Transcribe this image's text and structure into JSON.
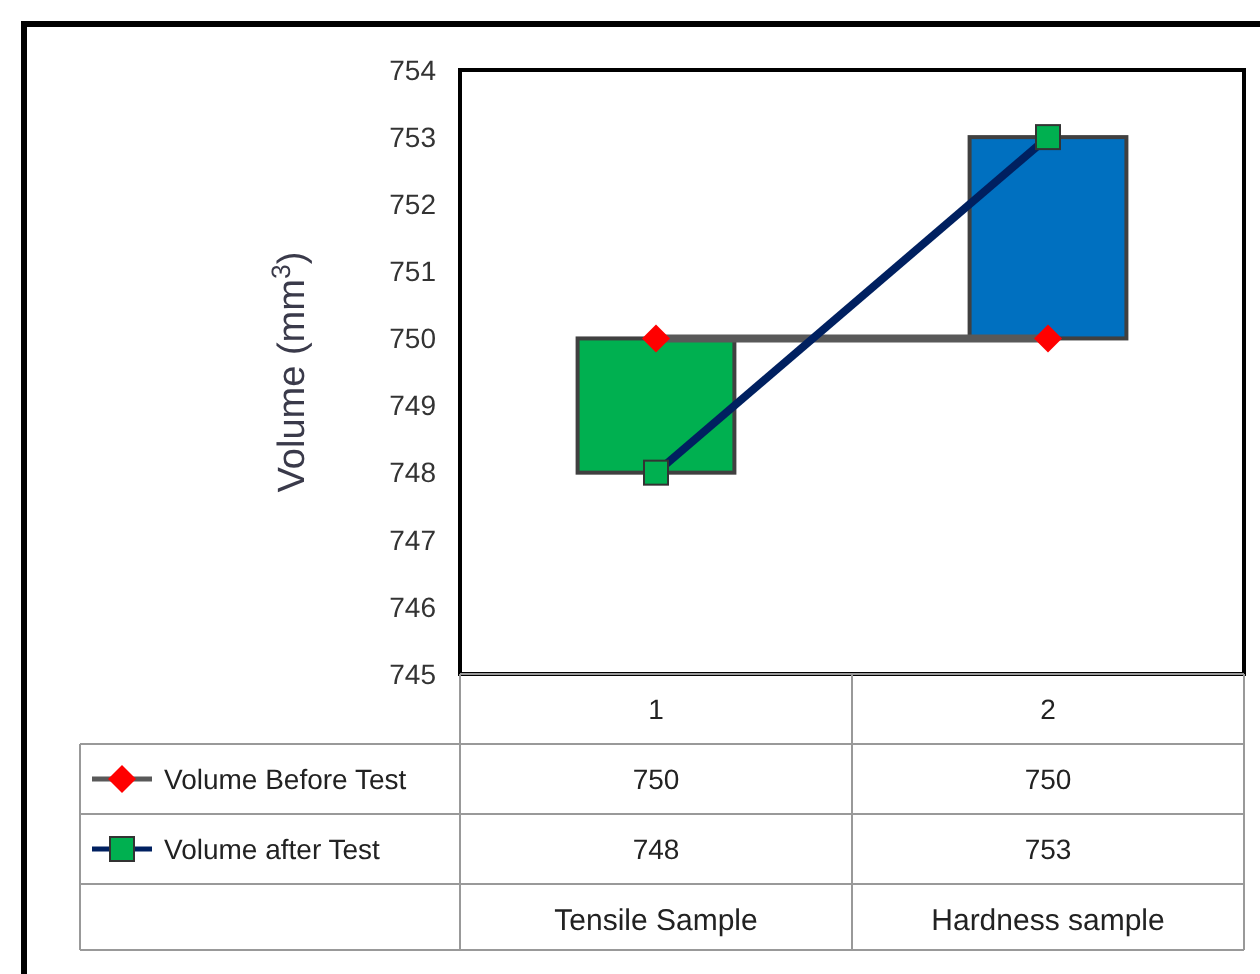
{
  "chart_data": {
    "type": "line",
    "ylabel": "Volume (mm$^{3}$)",
    "categories": [
      "1",
      "2"
    ],
    "ylim": [
      745,
      754
    ],
    "yticks": [
      745,
      746,
      747,
      748,
      749,
      750,
      751,
      752,
      753,
      754
    ],
    "legend": "bottom left",
    "grid": false,
    "series": [
      {
        "type": "bar",
        "base": [
          750,
          750
        ],
        "values": [
          -2,
          3
        ],
        "colors": [
          "#00b050",
          "#0070c0"
        ]
      },
      {
        "name": "Volume Before Test",
        "color": "#595959",
        "marker": "diamond",
        "colors": [
          "#ff0000",
          "#ff0000"
        ],
        "values": [
          750,
          750
        ],
        "value_labels": [
          "750",
          "750"
        ]
      },
      {
        "name": "Volume after Test",
        "color": "#002060",
        "marker": "square",
        "colors": [
          "#00b050",
          "#00b050"
        ],
        "values": [
          748,
          753
        ],
        "value_labels": [
          "748",
          "753"
        ]
      }
    ],
    "annotations": [
      "Tensile Sample",
      "Hardness sample"
    ]
  }
}
